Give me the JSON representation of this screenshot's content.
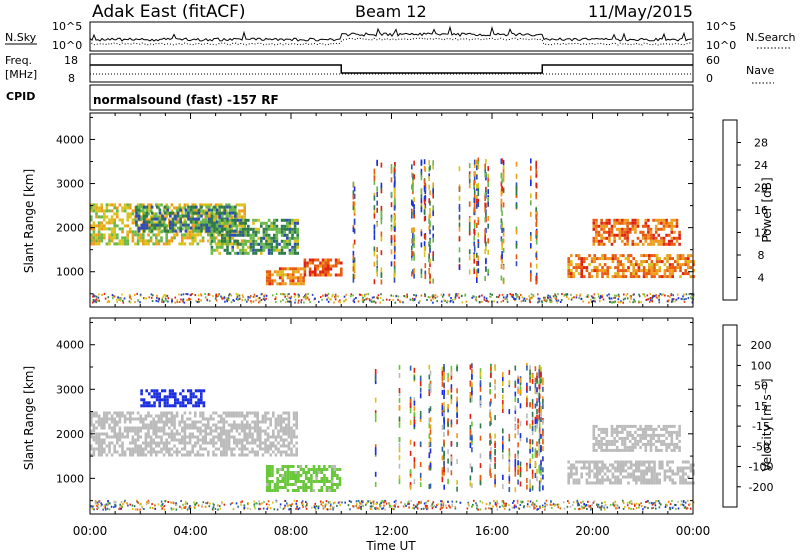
{
  "header": {
    "station": "Adak East (fitACF)",
    "beam": "Beam 12",
    "date": "11/May/2015"
  },
  "noise_panel": {
    "left_label": "N.Sky",
    "left_ticks": [
      "10^5",
      "10^0"
    ],
    "right_ticks": [
      "10^5",
      "10^0"
    ],
    "right_label": "N.Search"
  },
  "freq_panel": {
    "left_label_1": "Freq.",
    "left_label_2": "[MHz]",
    "left_ticks": [
      "18",
      "8"
    ],
    "right_ticks": [
      "60",
      "0"
    ],
    "right_label": "Nave"
  },
  "cpid": {
    "label": "CPID",
    "program": "normalsound (fast) -157 RF"
  },
  "colors": {
    "power": [
      "#1b2fe0",
      "#2f4db5",
      "#2f7a4a",
      "#68b84a",
      "#d9c21a",
      "#ee9a1a",
      "#e85a10",
      "#e02010"
    ],
    "velocity": [
      "#1b2fe0",
      "#2f5fb0",
      "#2f7a4a",
      "#68c83a",
      "#bbbbbb",
      "#d9c21a",
      "#ee9a1a",
      "#e85a10",
      "#e02010"
    ]
  },
  "chart_data": [
    {
      "type": "heatmap",
      "name": "power",
      "ylabel": "Slant Range [km]",
      "yticks": [
        1000,
        2000,
        3000,
        4000
      ],
      "ylim": [
        200,
        4600
      ],
      "xlim": [
        0,
        24
      ],
      "colorbar": {
        "label": "Power [dB]",
        "ticks": [
          "28",
          "24",
          "20",
          "16",
          "12",
          "8",
          "4"
        ],
        "range": [
          0,
          32
        ]
      },
      "regions": [
        {
          "t0": 0.0,
          "t1": 6.2,
          "r0": 1650,
          "r1": 2550,
          "value": 14
        },
        {
          "t0": 1.8,
          "t1": 5.8,
          "r0": 1900,
          "r1": 2500,
          "value": 22
        },
        {
          "t0": 4.8,
          "t1": 8.3,
          "r0": 1450,
          "r1": 2200,
          "value": 20
        },
        {
          "t0": 7.0,
          "t1": 8.5,
          "r0": 700,
          "r1": 1100,
          "value": 8
        },
        {
          "t0": 8.5,
          "t1": 10.0,
          "r0": 900,
          "r1": 1300,
          "value": 6
        },
        {
          "t0": 19.0,
          "t1": 24.0,
          "r0": 900,
          "r1": 1400,
          "value": 8
        },
        {
          "t0": 20.0,
          "t1": 23.5,
          "r0": 1600,
          "r1": 2200,
          "value": 7
        }
      ]
    },
    {
      "type": "heatmap",
      "name": "velocity",
      "ylabel": "Slant Range [km]",
      "yticks": [
        1000,
        2000,
        3000,
        4000
      ],
      "ylim": [
        200,
        4600
      ],
      "xlim": [
        0,
        24
      ],
      "xticks": [
        "00:00",
        "04:00",
        "08:00",
        "12:00",
        "16:00",
        "20:00",
        "00:00"
      ],
      "xlabel": "Time UT",
      "colorbar": {
        "label": "Velocity [m s⁻¹]",
        "ticks": [
          "200",
          "100",
          "50",
          "15",
          "-15",
          "-50",
          "-100",
          "-200"
        ],
        "range": [
          -250,
          250
        ]
      },
      "regions": [
        {
          "t0": 0.0,
          "t1": 8.2,
          "r0": 1500,
          "r1": 2500,
          "value": 0
        },
        {
          "t0": 2.0,
          "t1": 4.5,
          "r0": 2600,
          "r1": 3000,
          "value": 220
        },
        {
          "t0": 7.0,
          "t1": 10.0,
          "r0": 700,
          "r1": 1300,
          "value": 40
        },
        {
          "t0": 19.0,
          "t1": 24.0,
          "r0": 900,
          "r1": 1400,
          "value": 0
        },
        {
          "t0": 20.0,
          "t1": 23.5,
          "r0": 1600,
          "r1": 2200,
          "value": 0
        }
      ]
    }
  ]
}
